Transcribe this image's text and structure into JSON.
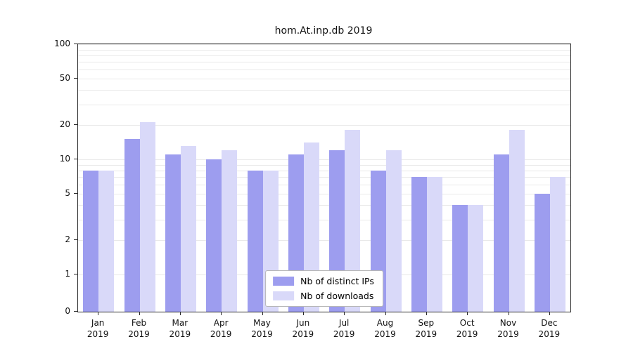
{
  "title": "hom.At.inp.db 2019",
  "colors": {
    "ips_bar": "#9d9def",
    "downloads_bar": "#d9d9f9",
    "grid": "#e9e9e9",
    "axis": "#2a2a2a",
    "background": "#ffffff"
  },
  "legend": {
    "items": [
      {
        "label": "Nb of distinct IPs"
      },
      {
        "label": "Nb of downloads"
      }
    ]
  },
  "chart_data": {
    "type": "bar",
    "title": "hom.At.inp.db 2019",
    "categories": [
      "Jan 2019",
      "Feb 2019",
      "Mar 2019",
      "Apr 2019",
      "May 2019",
      "Jun 2019",
      "Jul 2019",
      "Aug 2019",
      "Sep 2019",
      "Oct 2019",
      "Nov 2019",
      "Dec 2019"
    ],
    "series": [
      {
        "name": "Nb of distinct IPs",
        "color": "#9d9def",
        "values": [
          8,
          15,
          11,
          10,
          8,
          11,
          12,
          8,
          7,
          4,
          11,
          5
        ]
      },
      {
        "name": "Nb of downloads",
        "color": "#d9d9f9",
        "values": [
          8,
          21,
          13,
          12,
          8,
          14,
          18,
          12,
          7,
          4,
          18,
          7
        ]
      }
    ],
    "xlabel": "",
    "ylabel": "",
    "yscale": "symlog",
    "ylim": [
      0,
      100
    ],
    "yticks": [
      0,
      1,
      2,
      5,
      10,
      20,
      50,
      100
    ],
    "grid": "horizontal, major and minor log lines",
    "legend_position": "lower center"
  }
}
